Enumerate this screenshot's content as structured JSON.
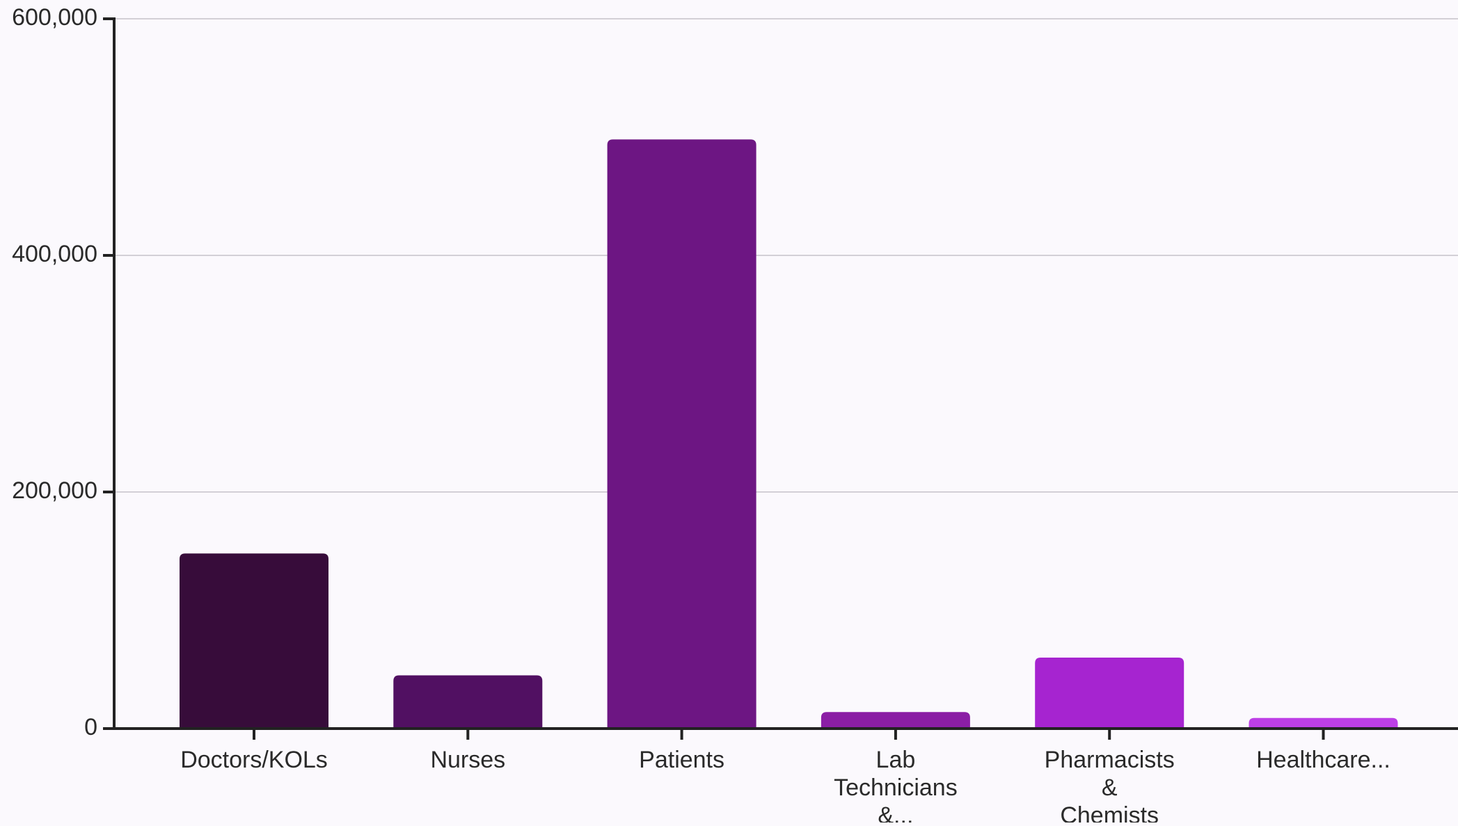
{
  "chart_data": {
    "type": "bar",
    "categories": [
      [
        "Doctors/KOLs"
      ],
      [
        "Nurses"
      ],
      [
        "Patients"
      ],
      [
        "Lab",
        "Technicians",
        "&..."
      ],
      [
        "Pharmacists",
        "&",
        "Chemists"
      ],
      [
        "Healthcare..."
      ]
    ],
    "values": [
      148000,
      45000,
      498000,
      14000,
      60000,
      9000
    ],
    "colors": [
      "#370c3a",
      "#511062",
      "#6d1683",
      "#8b1ea5",
      "#a624d0",
      "#bd3fe6"
    ],
    "ylim": [
      0,
      600000
    ],
    "yticks": [
      {
        "value": 0,
        "label": "0"
      },
      {
        "value": 200000,
        "label": "200,000"
      },
      {
        "value": 400000,
        "label": "400,000"
      },
      {
        "value": 600000,
        "label": "600,000"
      }
    ],
    "grid": true,
    "axis_color": "#222222",
    "grid_color": "#d3d0d6"
  }
}
